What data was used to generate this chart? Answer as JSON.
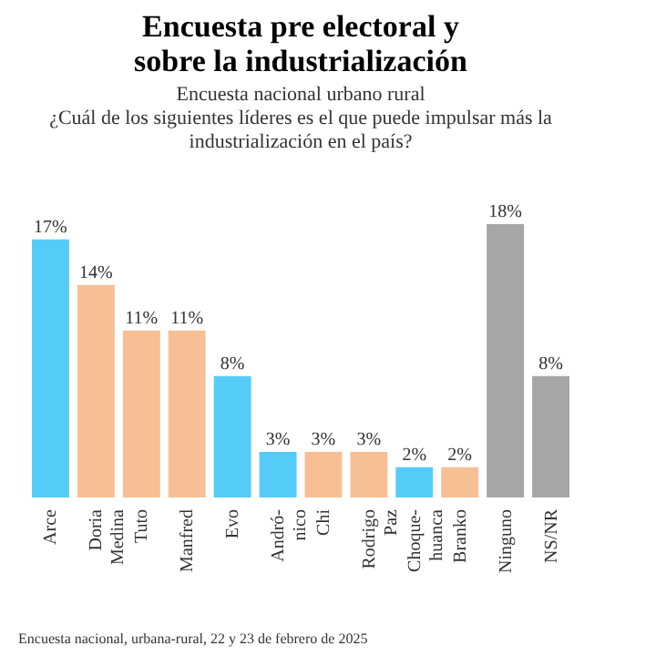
{
  "chart_data": {
    "type": "bar",
    "title": "Encuesta pre electoral y\nsobre la industrialización",
    "subtitle": "Encuesta nacional urbano rural",
    "annotations": [
      "¿Cuál de los siguientes líderes es el que puede impulsar más la\nindustrialización en el país?",
      "Encuesta nacional, urbana-rural, 22 y 23 de febrero de 2025"
    ],
    "categories": [
      "Arce",
      "Doria\nMedina",
      "Tuto",
      "Manfred",
      "Evo",
      "Andró-\nnico",
      "Chi",
      "Rodrigo\nPaz",
      "Choque-\nhuanca",
      "Branko",
      "Ninguno",
      "NS/NR"
    ],
    "values": [
      17,
      14,
      11,
      11,
      8,
      3,
      3,
      3,
      2,
      2,
      18,
      8
    ],
    "value_labels": [
      "17%",
      "14%",
      "11%",
      "11%",
      "8%",
      "3%",
      "3%",
      "3%",
      "2%",
      "2%",
      "18%",
      "8%"
    ],
    "colors": [
      "#55ccf8",
      "#f7bf94",
      "#f7bf94",
      "#f7bf94",
      "#55ccf8",
      "#55ccf8",
      "#f7bf94",
      "#f7bf94",
      "#55ccf8",
      "#f7bf94",
      "#a6a6a6",
      "#a6a6a6"
    ],
    "grid": false
  }
}
